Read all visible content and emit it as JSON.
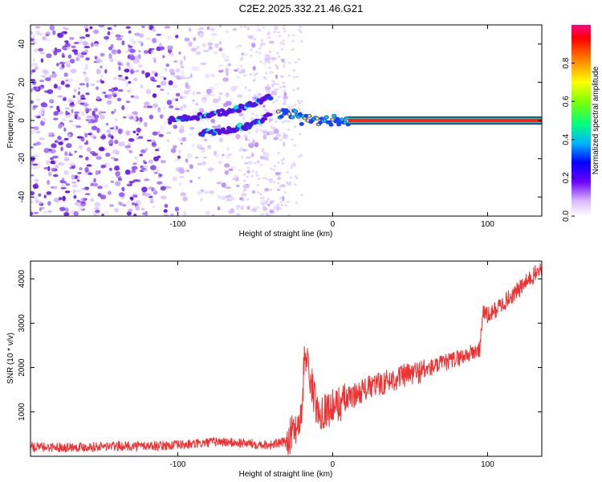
{
  "title": "C2E2.2025.332.21.46.G21",
  "colors": {
    "snr_line": "#f03030",
    "grid_border": "#000000",
    "band_core": "#ff2020",
    "band_edge": "#1a1aff"
  },
  "chart_data": [
    {
      "type": "heatmap",
      "xlabel": "Height of straight line (km)",
      "ylabel": "Frequency (Hz)",
      "xlim": [
        -195,
        135
      ],
      "ylim": [
        -50,
        50
      ],
      "xticks": [
        -100,
        0,
        100
      ],
      "yticks": [
        -40,
        -20,
        0,
        20,
        40
      ],
      "xtick_labels": [
        "-100",
        "0",
        "100"
      ],
      "ytick_labels": [
        "-40",
        "-20",
        "0",
        "20",
        "40"
      ],
      "colorbar": {
        "label": "Normalized spectral amplitude",
        "range": [
          0,
          1
        ],
        "ticks": [
          0.0,
          0.2,
          0.4,
          0.6,
          0.8
        ],
        "tick_labels": [
          "0.0",
          "0.2",
          "0.4",
          "0.6",
          "0.8"
        ]
      },
      "features": {
        "noise_region_x": [
          -195,
          -35
        ],
        "converging_tracks": {
          "upper": {
            "x": [
              -105,
              -65,
              -40
            ],
            "y": [
              0,
              5,
              12
            ]
          },
          "lower": {
            "x": [
              -85,
              -55,
              -40
            ],
            "y": [
              -7,
              -3,
              3
            ]
          }
        },
        "transition_x": [
          -35,
          10
        ],
        "stable_band": {
          "x": [
            10,
            135
          ],
          "frequency": 0
        }
      }
    },
    {
      "type": "line",
      "xlabel": "Height of straight line (km)",
      "ylabel": "SNR (10 * v/v)",
      "xlim": [
        -195,
        135
      ],
      "ylim": [
        0,
        4400
      ],
      "xticks": [
        -100,
        0,
        100
      ],
      "yticks": [
        1000,
        2000,
        3000,
        4000
      ],
      "xtick_labels": [
        "-100",
        "0",
        "100"
      ],
      "ytick_labels": [
        "1000",
        "2000",
        "3000",
        "4000"
      ],
      "series": [
        {
          "name": "SNR",
          "x": [
            -195,
            -150,
            -110,
            -90,
            -75,
            -60,
            -40,
            -30,
            -25,
            -20,
            -18,
            -10,
            0,
            10,
            20,
            40,
            60,
            80,
            95,
            97,
            100,
            120,
            135
          ],
          "y": [
            200,
            220,
            240,
            270,
            330,
            300,
            260,
            320,
            600,
            900,
            2400,
            1000,
            1100,
            1300,
            1500,
            1750,
            1950,
            2200,
            2400,
            3300,
            3150,
            3750,
            4250
          ]
        }
      ]
    }
  ]
}
